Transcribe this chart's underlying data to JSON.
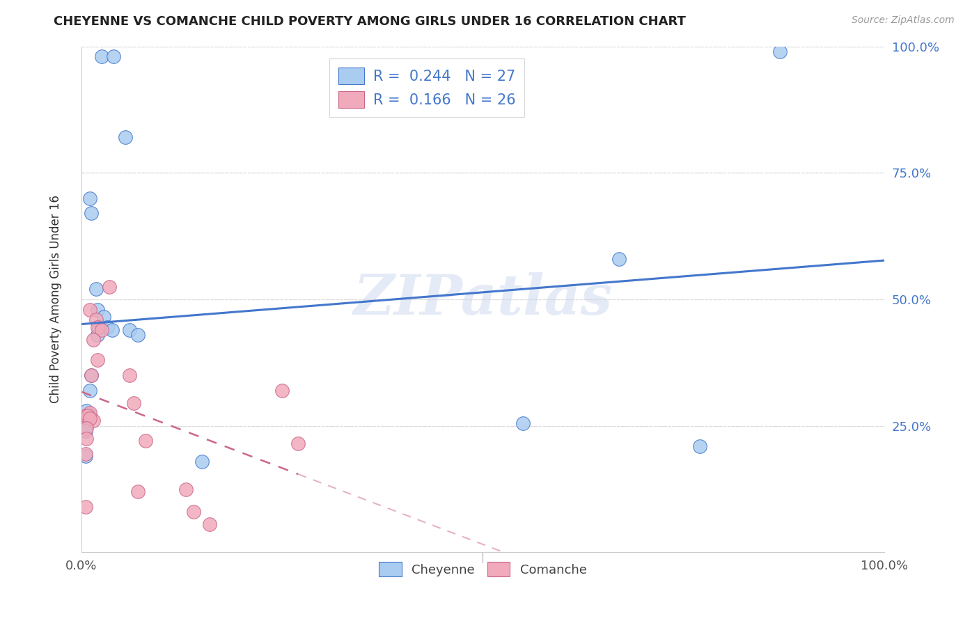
{
  "title": "CHEYENNE VS COMANCHE CHILD POVERTY AMONG GIRLS UNDER 16 CORRELATION CHART",
  "source": "Source: ZipAtlas.com",
  "ylabel": "Child Poverty Among Girls Under 16",
  "watermark": "ZIPatlas",
  "cheyenne_color": "#aaccf0",
  "comanche_color": "#f0aabb",
  "cheyenne_line_color": "#4477cc",
  "comanche_line_color": "#cc6688",
  "R_cheyenne": 0.244,
  "N_cheyenne": 27,
  "R_comanche": 0.166,
  "N_comanche": 26,
  "cheyenne_x": [
    0.025,
    0.04,
    0.055,
    0.01,
    0.012,
    0.018,
    0.02,
    0.028,
    0.032,
    0.038,
    0.02,
    0.022,
    0.012,
    0.01,
    0.01,
    0.008,
    0.005,
    0.005,
    0.006,
    0.005,
    0.06,
    0.07,
    0.87,
    0.67,
    0.55,
    0.77,
    0.15
  ],
  "cheyenne_y": [
    0.98,
    0.98,
    0.82,
    0.7,
    0.67,
    0.52,
    0.48,
    0.465,
    0.445,
    0.44,
    0.43,
    0.445,
    0.35,
    0.32,
    0.27,
    0.26,
    0.25,
    0.24,
    0.28,
    0.19,
    0.44,
    0.43,
    0.99,
    0.58,
    0.255,
    0.21,
    0.18
  ],
  "comanche_x": [
    0.005,
    0.01,
    0.015,
    0.008,
    0.01,
    0.018,
    0.02,
    0.025,
    0.035,
    0.015,
    0.02,
    0.012,
    0.01,
    0.006,
    0.006,
    0.005,
    0.005,
    0.06,
    0.065,
    0.08,
    0.25,
    0.27,
    0.07,
    0.13,
    0.14,
    0.16
  ],
  "comanche_y": [
    0.27,
    0.275,
    0.26,
    0.27,
    0.48,
    0.46,
    0.445,
    0.44,
    0.525,
    0.42,
    0.38,
    0.35,
    0.265,
    0.245,
    0.225,
    0.195,
    0.09,
    0.35,
    0.295,
    0.22,
    0.32,
    0.215,
    0.12,
    0.125,
    0.08,
    0.055
  ],
  "xlim": [
    0.0,
    1.0
  ],
  "ylim": [
    0.0,
    1.0
  ],
  "xticks": [
    0.0,
    0.25,
    0.5,
    0.75,
    1.0
  ],
  "yticks": [
    0.0,
    0.25,
    0.5,
    0.75,
    1.0
  ],
  "ytick_labels_right": [
    "",
    "25.0%",
    "50.0%",
    "75.0%",
    "100.0%"
  ],
  "xtick_labels": [
    "0.0%",
    "",
    "",
    "",
    "100.0%"
  ],
  "background_color": "#ffffff",
  "grid_color": "#dddddd"
}
